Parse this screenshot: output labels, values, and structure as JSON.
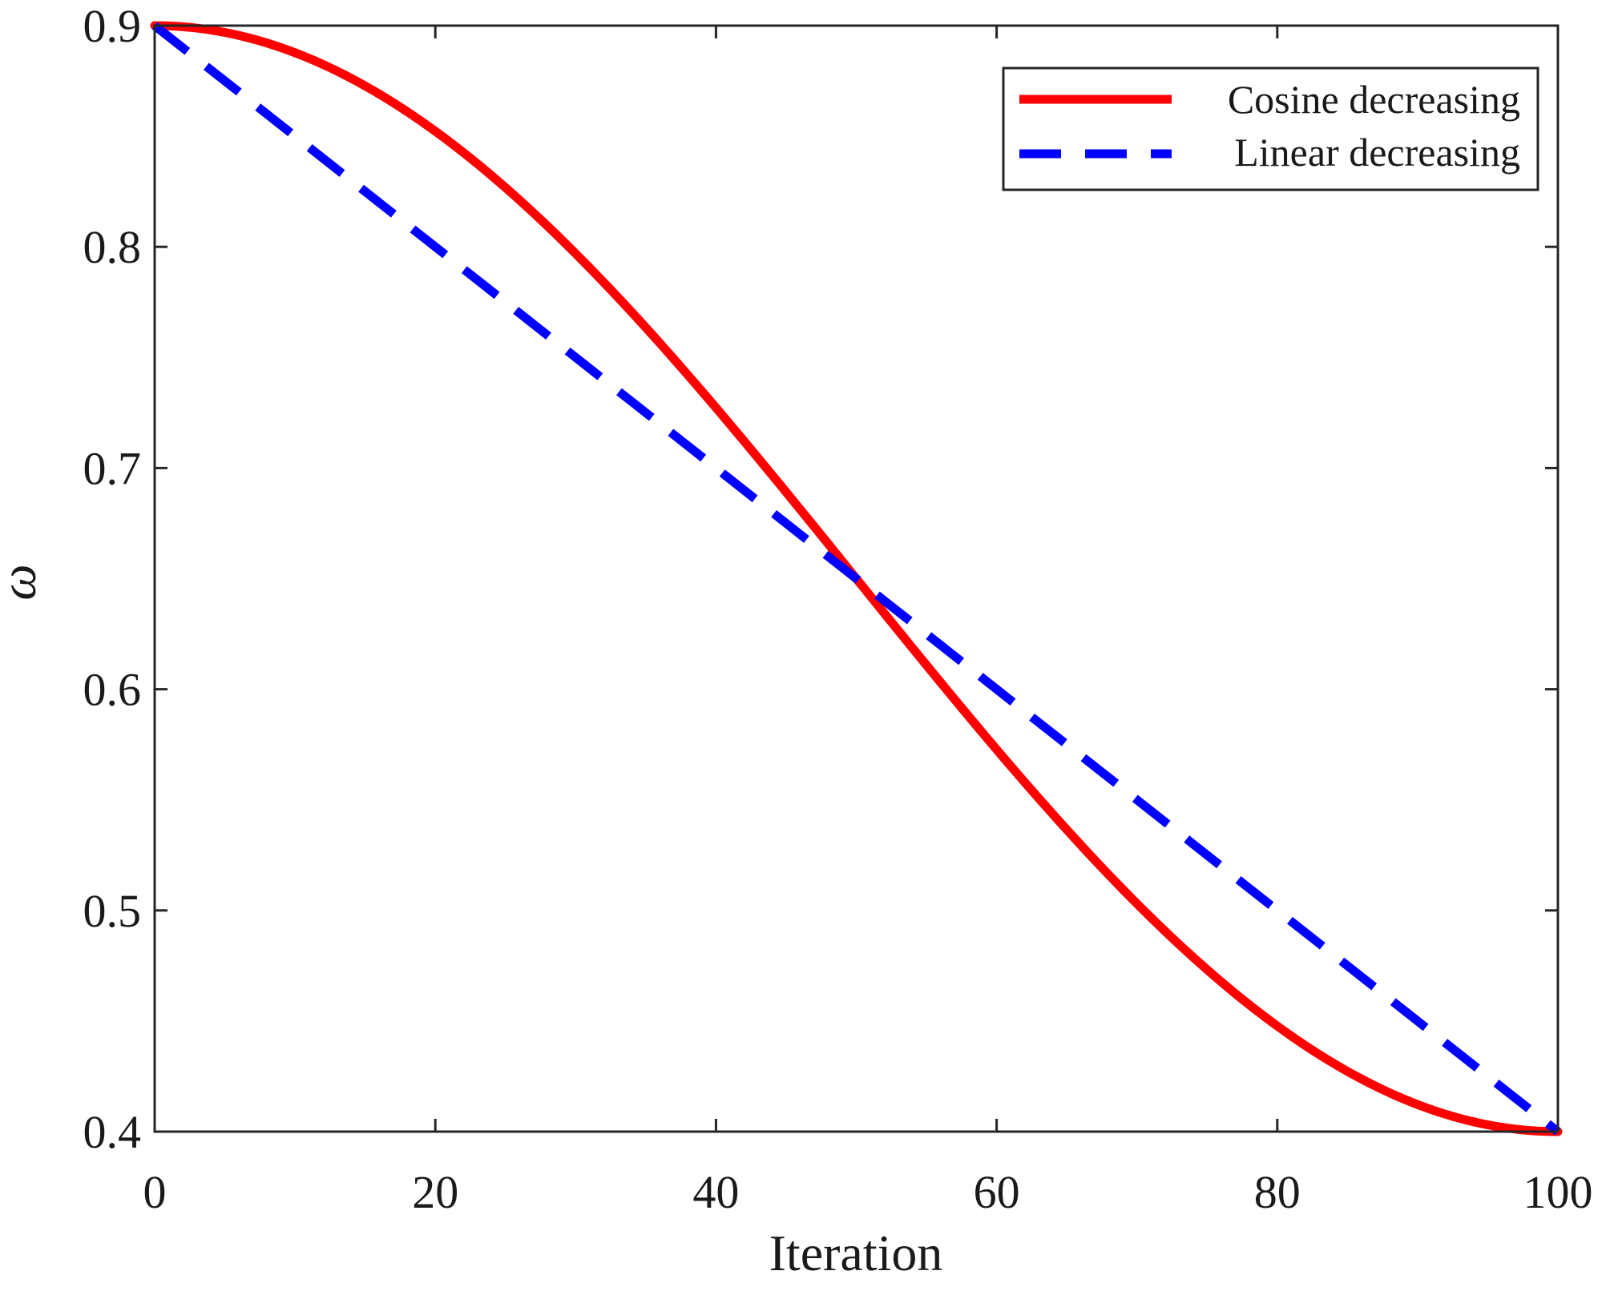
{
  "chart_data": {
    "type": "line",
    "title": "",
    "xlabel": "Iteration",
    "ylabel": "ω",
    "xlim": [
      0,
      100
    ],
    "ylim": [
      0.4,
      0.9
    ],
    "x_ticks": [
      0,
      20,
      40,
      60,
      80,
      100
    ],
    "x_tick_labels": [
      "0",
      "20",
      "40",
      "60",
      "80",
      "100"
    ],
    "y_ticks": [
      0.4,
      0.5,
      0.6,
      0.7,
      0.8,
      0.9
    ],
    "y_tick_labels": [
      "0.4",
      "0.5",
      "0.6",
      "0.7",
      "0.8",
      "0.9"
    ],
    "grid": false,
    "legend_position": "top-right",
    "series": [
      {
        "name": "Cosine decreasing",
        "style": "solid",
        "color": "#ff0000",
        "x": [
          0,
          10,
          20,
          30,
          40,
          50,
          60,
          70,
          80,
          90,
          100
        ],
        "y": [
          0.9,
          0.8878,
          0.8523,
          0.7969,
          0.7273,
          0.65,
          0.5727,
          0.5031,
          0.4477,
          0.4122,
          0.4
        ]
      },
      {
        "name": "Linear decreasing",
        "style": "dashed",
        "color": "#0000ff",
        "x": [
          0,
          100
        ],
        "y": [
          0.9,
          0.4
        ]
      }
    ]
  }
}
